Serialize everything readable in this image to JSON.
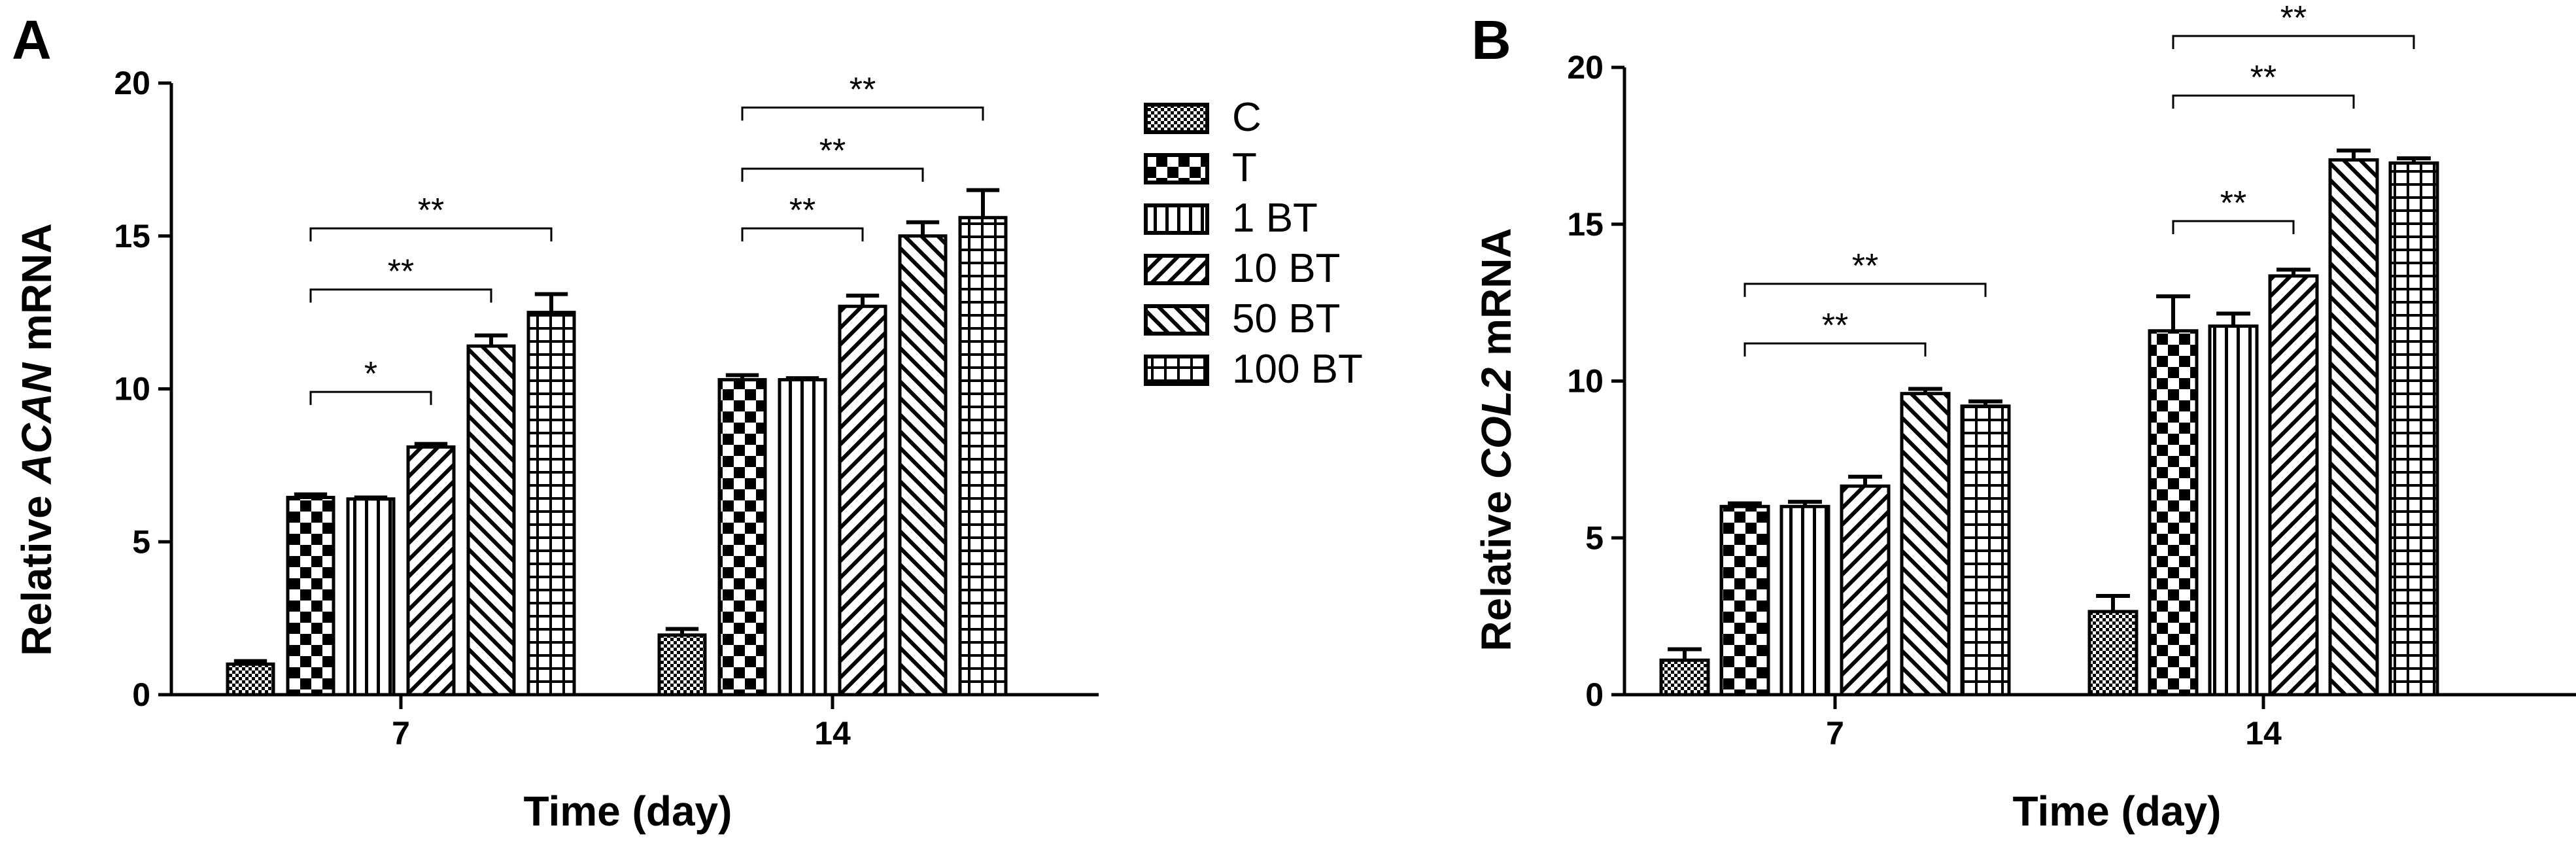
{
  "chart_data": [
    {
      "panel_label": "A",
      "type": "bar",
      "xlabel": "Time (day)",
      "ylabel_prefix": "Relative ",
      "ylabel_gene": "ACAN",
      "ylabel_suffix": " mRNA",
      "ylim": [
        0,
        20
      ],
      "yticks": [
        "0",
        "5",
        "10",
        "15",
        "20"
      ],
      "categories": [
        "7",
        "14"
      ],
      "series": [
        {
          "name": "C",
          "pattern": "checker",
          "values": [
            1.0,
            1.95
          ],
          "errors": [
            0.1,
            0.2
          ]
        },
        {
          "name": "T",
          "pattern": "bigchecker",
          "values": [
            6.45,
            10.3
          ],
          "errors": [
            0.1,
            0.15
          ]
        },
        {
          "name": "1 BT",
          "pattern": "vlines",
          "values": [
            6.4,
            10.3
          ],
          "errors": [
            0.05,
            0.05
          ]
        },
        {
          "name": "10 BT",
          "pattern": "diagright",
          "values": [
            8.1,
            12.7
          ],
          "errors": [
            0.1,
            0.35
          ]
        },
        {
          "name": "50 BT",
          "pattern": "diagleft",
          "values": [
            11.4,
            15.0
          ],
          "errors": [
            0.35,
            0.45
          ]
        },
        {
          "name": "100 BT",
          "pattern": "grid",
          "values": [
            12.5,
            15.6
          ],
          "errors": [
            0.6,
            0.9
          ]
        }
      ],
      "significance": [
        {
          "group": 0,
          "from": 1,
          "to": 3,
          "label": "*",
          "level": 9.9
        },
        {
          "group": 0,
          "from": 1,
          "to": 4,
          "label": "**",
          "level": 13.25
        },
        {
          "group": 0,
          "from": 1,
          "to": 5,
          "label": "**",
          "level": 15.25
        },
        {
          "group": 1,
          "from": 1,
          "to": 3,
          "label": "**",
          "level": 15.25
        },
        {
          "group": 1,
          "from": 1,
          "to": 4,
          "label": "**",
          "level": 17.2
        },
        {
          "group": 1,
          "from": 1,
          "to": 5,
          "label": "**",
          "level": 19.2
        }
      ]
    },
    {
      "panel_label": "B",
      "type": "bar",
      "xlabel": "Time (day)",
      "ylabel_prefix": "Relative ",
      "ylabel_gene": "COL2",
      "ylabel_suffix": " mRNA",
      "ylim": [
        0,
        20
      ],
      "yticks": [
        "0",
        "5",
        "10",
        "15",
        "20"
      ],
      "categories": [
        "7",
        "14"
      ],
      "series": [
        {
          "name": "C",
          "pattern": "checker",
          "values": [
            1.1,
            2.65
          ],
          "errors": [
            0.35,
            0.5
          ]
        },
        {
          "name": "T",
          "pattern": "bigchecker",
          "values": [
            6.0,
            11.6
          ],
          "errors": [
            0.1,
            1.1
          ]
        },
        {
          "name": "1 BT",
          "pattern": "vlines",
          "values": [
            6.0,
            11.75
          ],
          "errors": [
            0.15,
            0.4
          ]
        },
        {
          "name": "10 BT",
          "pattern": "diagright",
          "values": [
            6.65,
            13.35
          ],
          "errors": [
            0.3,
            0.2
          ]
        },
        {
          "name": "50 BT",
          "pattern": "diagleft",
          "values": [
            9.6,
            17.05
          ],
          "errors": [
            0.15,
            0.3
          ]
        },
        {
          "name": "100 BT",
          "pattern": "grid",
          "values": [
            9.2,
            16.95
          ],
          "errors": [
            0.15,
            0.15
          ]
        }
      ],
      "significance": [
        {
          "group": 0,
          "from": 1,
          "to": 4,
          "label": "**",
          "level": 11.2
        },
        {
          "group": 0,
          "from": 1,
          "to": 5,
          "label": "**",
          "level": 13.1
        },
        {
          "group": 1,
          "from": 1,
          "to": 3,
          "label": "**",
          "level": 15.1
        },
        {
          "group": 1,
          "from": 1,
          "to": 4,
          "label": "**",
          "level": 19.1
        },
        {
          "group": 1,
          "from": 1,
          "to": 5,
          "label": "**",
          "level": 21.0
        }
      ]
    }
  ],
  "legend": {
    "items": [
      {
        "label": "C",
        "pattern": "checker"
      },
      {
        "label": "T",
        "pattern": "bigchecker"
      },
      {
        "label": "1 BT",
        "pattern": "vlines"
      },
      {
        "label": "10 BT",
        "pattern": "diagright"
      },
      {
        "label": "50 BT",
        "pattern": "diagleft"
      },
      {
        "label": "100 BT",
        "pattern": "grid"
      }
    ]
  }
}
